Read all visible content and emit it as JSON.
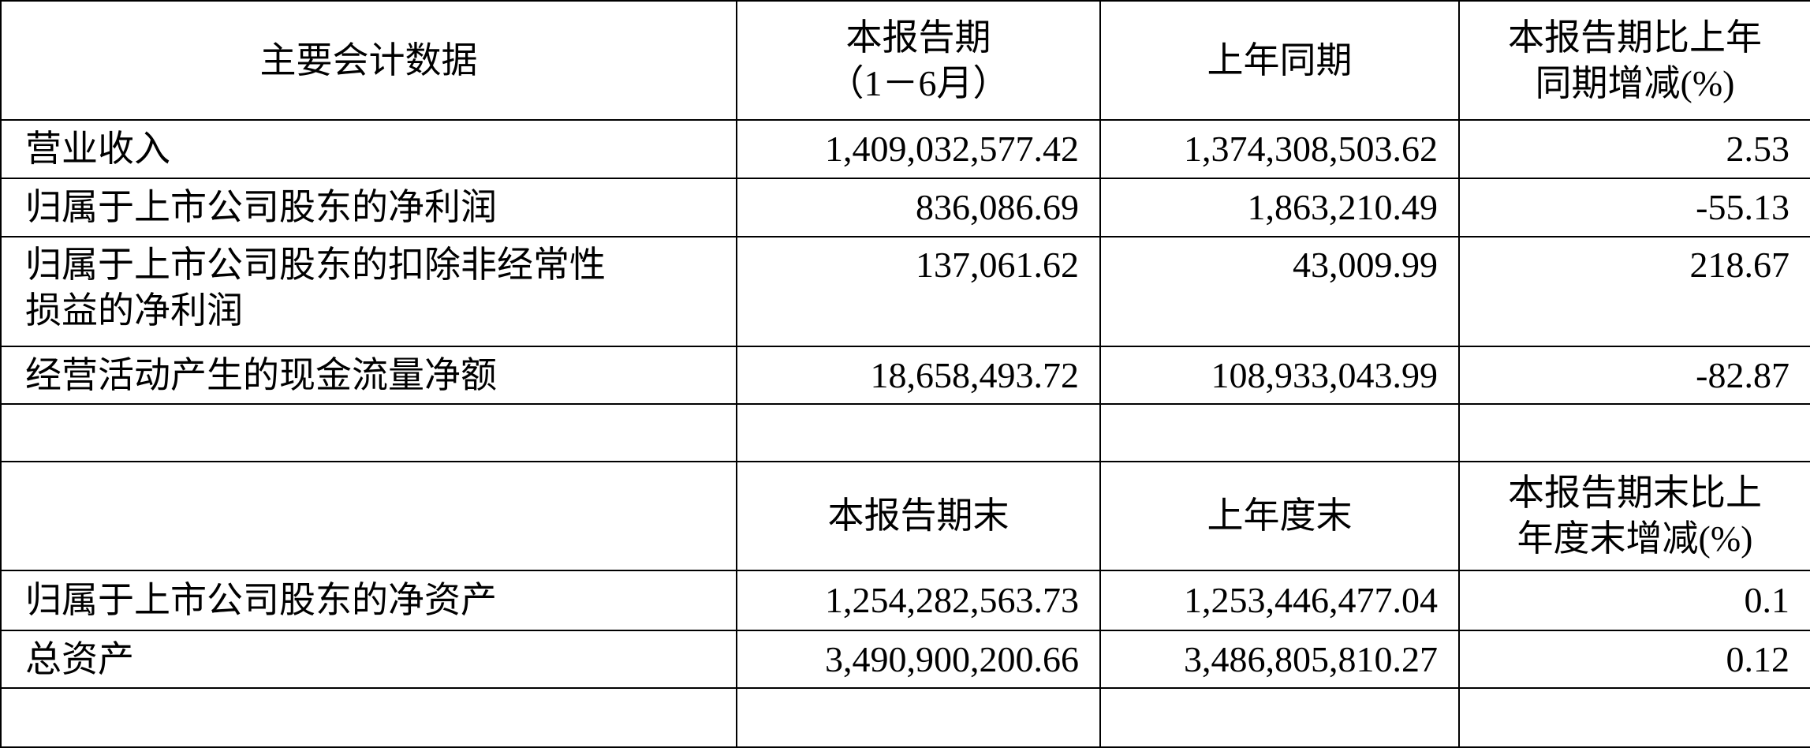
{
  "header1": {
    "col0": "主要会计数据",
    "col1_line1": "本报告期",
    "col1_line2": "（1－6月）",
    "col2": "上年同期",
    "col3_line1": "本报告期比上年",
    "col3_line2": "同期增减(%)"
  },
  "rows1": [
    {
      "label": "营业收入",
      "current": "1,409,032,577.42",
      "previous": "1,374,308,503.62",
      "change": "2.53"
    },
    {
      "label": "归属于上市公司股东的净利润",
      "current": "836,086.69",
      "previous": "1,863,210.49",
      "change": "-55.13"
    },
    {
      "label_line1": "归属于上市公司股东的扣除非经常性",
      "label_line2": "损益的净利润",
      "current": "137,061.62",
      "previous": "43,009.99",
      "change": "218.67"
    },
    {
      "label": "经营活动产生的现金流量净额",
      "current": "18,658,493.72",
      "previous": "108,933,043.99",
      "change": "-82.87"
    }
  ],
  "header2": {
    "col1": "本报告期末",
    "col2": "上年度末",
    "col3_line1": "本报告期末比上",
    "col3_line2": "年度末增减(%)"
  },
  "rows2": [
    {
      "label": "归属于上市公司股东的净资产",
      "current": "1,254,282,563.73",
      "previous": "1,253,446,477.04",
      "change": "0.1"
    },
    {
      "label": "总资产",
      "current": "3,490,900,200.66",
      "previous": "3,486,805,810.27",
      "change": "0.12"
    }
  ]
}
